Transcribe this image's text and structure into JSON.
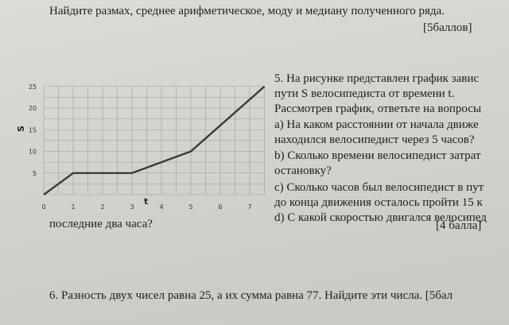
{
  "task4": {
    "line1": "Найдите размах, среднее арифметическое, моду и медиану полученного ряда.",
    "points": "[5баллов]"
  },
  "task5": {
    "lines": [
      "5. На рисунке представлен график завис",
      "пути S велосипедиста от времени t.",
      "Рассмотрев график, ответьте на вопросы",
      "а) На каком расстоянии от начала движе",
      "находился велосипедист через 5 часов?",
      "b) Сколько времени велосипедист затрат",
      "остановку?",
      "c) Сколько часов был велосипедист в пут",
      "до конца движения осталось пройти 15 к",
      "d) С какой скоростью двигался велосипед"
    ],
    "last_line": "последние два часа?",
    "points": "[4 балла]"
  },
  "task6": {
    "line": "6. Разность двух чисел равна 25, а их сумма равна 77. Найдите эти числа. [5бал"
  },
  "chart_data": {
    "type": "line",
    "xlabel": "t",
    "ylabel": "S",
    "xlim": [
      0,
      7
    ],
    "ylim": [
      0,
      25
    ],
    "x_ticks": [
      0,
      1,
      2,
      3,
      4,
      5,
      6,
      7
    ],
    "y_ticks": [
      5,
      10,
      15,
      20,
      25
    ],
    "grid": true,
    "series": [
      {
        "x": [
          0,
          1,
          3,
          5,
          7.5
        ],
        "y": [
          0,
          5,
          5,
          10,
          25
        ]
      }
    ]
  }
}
